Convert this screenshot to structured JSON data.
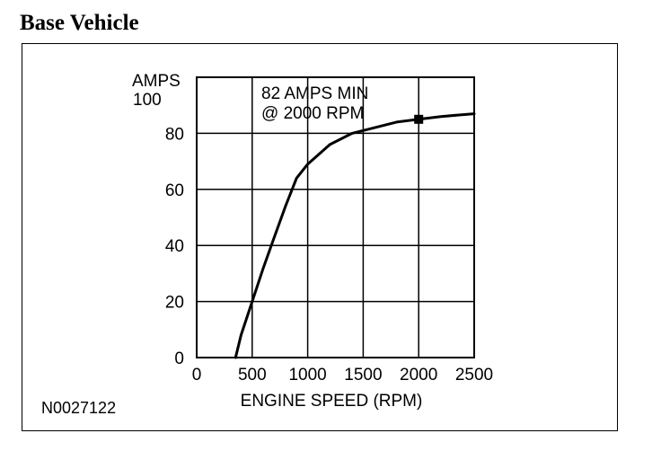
{
  "heading": "Base Vehicle",
  "figure_id": "N0027122",
  "chart_data": {
    "type": "line",
    "title": "",
    "xlabel": "ENGINE SPEED (RPM)",
    "ylabel": "AMPS",
    "xlim": [
      0,
      2500
    ],
    "ylim": [
      0,
      100
    ],
    "x_ticks": [
      "0",
      "500",
      "1000",
      "1500",
      "2000",
      "2500"
    ],
    "y_ticks": [
      "0",
      "20",
      "40",
      "60",
      "80",
      "100"
    ],
    "grid": true,
    "annotation": [
      "82 AMPS MIN",
      "@ 2000 RPM"
    ],
    "marker": {
      "x": 2000,
      "y": 85
    },
    "series": [
      {
        "x": [
          350,
          400,
          500,
          600,
          700,
          800,
          900,
          1000,
          1200,
          1400,
          1600,
          1800,
          2000,
          2200,
          2500
        ],
        "y": [
          0,
          8,
          20,
          32,
          43,
          54,
          64,
          69,
          76,
          80,
          82,
          84,
          85,
          86,
          87
        ]
      }
    ]
  }
}
